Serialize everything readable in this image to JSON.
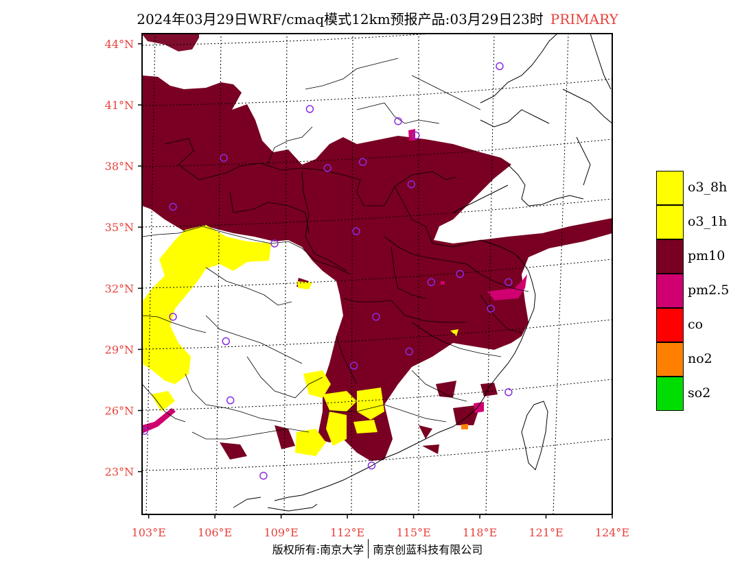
{
  "title": {
    "text": "2024年03月29日WRF/cmaq模式12km预报产品:03月29日23时",
    "tag": "PRIMARY"
  },
  "map": {
    "lon_range": [
      102.7,
      124
    ],
    "lat_range": [
      20.9,
      44.5
    ],
    "lon_ticks": [
      {
        "value": 103,
        "label": "103°E"
      },
      {
        "value": 106,
        "label": "106°E"
      },
      {
        "value": 109,
        "label": "109°E"
      },
      {
        "value": 112,
        "label": "112°E"
      },
      {
        "value": 115,
        "label": "115°E"
      },
      {
        "value": 118,
        "label": "118°E"
      },
      {
        "value": 121,
        "label": "121°E"
      },
      {
        "value": 124,
        "label": "124°E"
      }
    ],
    "lat_ticks": [
      {
        "value": 44,
        "label": "44°N"
      },
      {
        "value": 41,
        "label": "41°N"
      },
      {
        "value": 38,
        "label": "38°N"
      },
      {
        "value": 35,
        "label": "35°N"
      },
      {
        "value": 32,
        "label": "32°N"
      },
      {
        "value": 29,
        "label": "29°N"
      },
      {
        "value": 26,
        "label": "26°N"
      },
      {
        "value": 23,
        "label": "23°N"
      }
    ],
    "colors": {
      "o3_8h": "#ffff00",
      "o3_1h": "#ffff00",
      "pm10": "#790022",
      "pm25": "#d00070",
      "co": "#ff0000",
      "no2": "#ff8000",
      "so2": "#00dd00",
      "tick_label": "#e8403a",
      "station": "#8a2be2"
    },
    "stations": [
      {
        "lon": 118.9,
        "lat": 42.9
      },
      {
        "lon": 110.3,
        "lat": 40.8
      },
      {
        "lon": 114.3,
        "lat": 40.2
      },
      {
        "lon": 115.1,
        "lat": 39.5
      },
      {
        "lon": 106.4,
        "lat": 38.4
      },
      {
        "lon": 111.1,
        "lat": 37.9
      },
      {
        "lon": 112.7,
        "lat": 38.2
      },
      {
        "lon": 114.9,
        "lat": 37.1
      },
      {
        "lon": 104.1,
        "lat": 36.0
      },
      {
        "lon": 112.4,
        "lat": 34.8
      },
      {
        "lon": 108.7,
        "lat": 34.2
      },
      {
        "lon": 117.1,
        "lat": 32.7
      },
      {
        "lon": 115.8,
        "lat": 32.3
      },
      {
        "lon": 119.3,
        "lat": 32.3
      },
      {
        "lon": 113.3,
        "lat": 30.6
      },
      {
        "lon": 118.5,
        "lat": 31.0
      },
      {
        "lon": 104.1,
        "lat": 30.6
      },
      {
        "lon": 106.5,
        "lat": 29.4
      },
      {
        "lon": 114.8,
        "lat": 28.9
      },
      {
        "lon": 112.3,
        "lat": 28.2
      },
      {
        "lon": 119.3,
        "lat": 26.9
      },
      {
        "lon": 106.7,
        "lat": 26.5
      },
      {
        "lon": 102.8,
        "lat": 25.0
      },
      {
        "lon": 113.1,
        "lat": 23.3
      },
      {
        "lon": 108.2,
        "lat": 22.8
      }
    ]
  },
  "legend": [
    {
      "label": "o3_8h",
      "color": "#ffff00"
    },
    {
      "label": "o3_1h",
      "color": "#ffff00"
    },
    {
      "label": "pm10",
      "color": "#790022"
    },
    {
      "label": "pm2.5",
      "color": "#d00070"
    },
    {
      "label": "co",
      "color": "#ff0000"
    },
    {
      "label": "no2",
      "color": "#ff8000"
    },
    {
      "label": "so2",
      "color": "#00dd00"
    }
  ],
  "footer": {
    "left": "版权所有:南京大学",
    "right": "南京创蓝科技有限公司"
  }
}
